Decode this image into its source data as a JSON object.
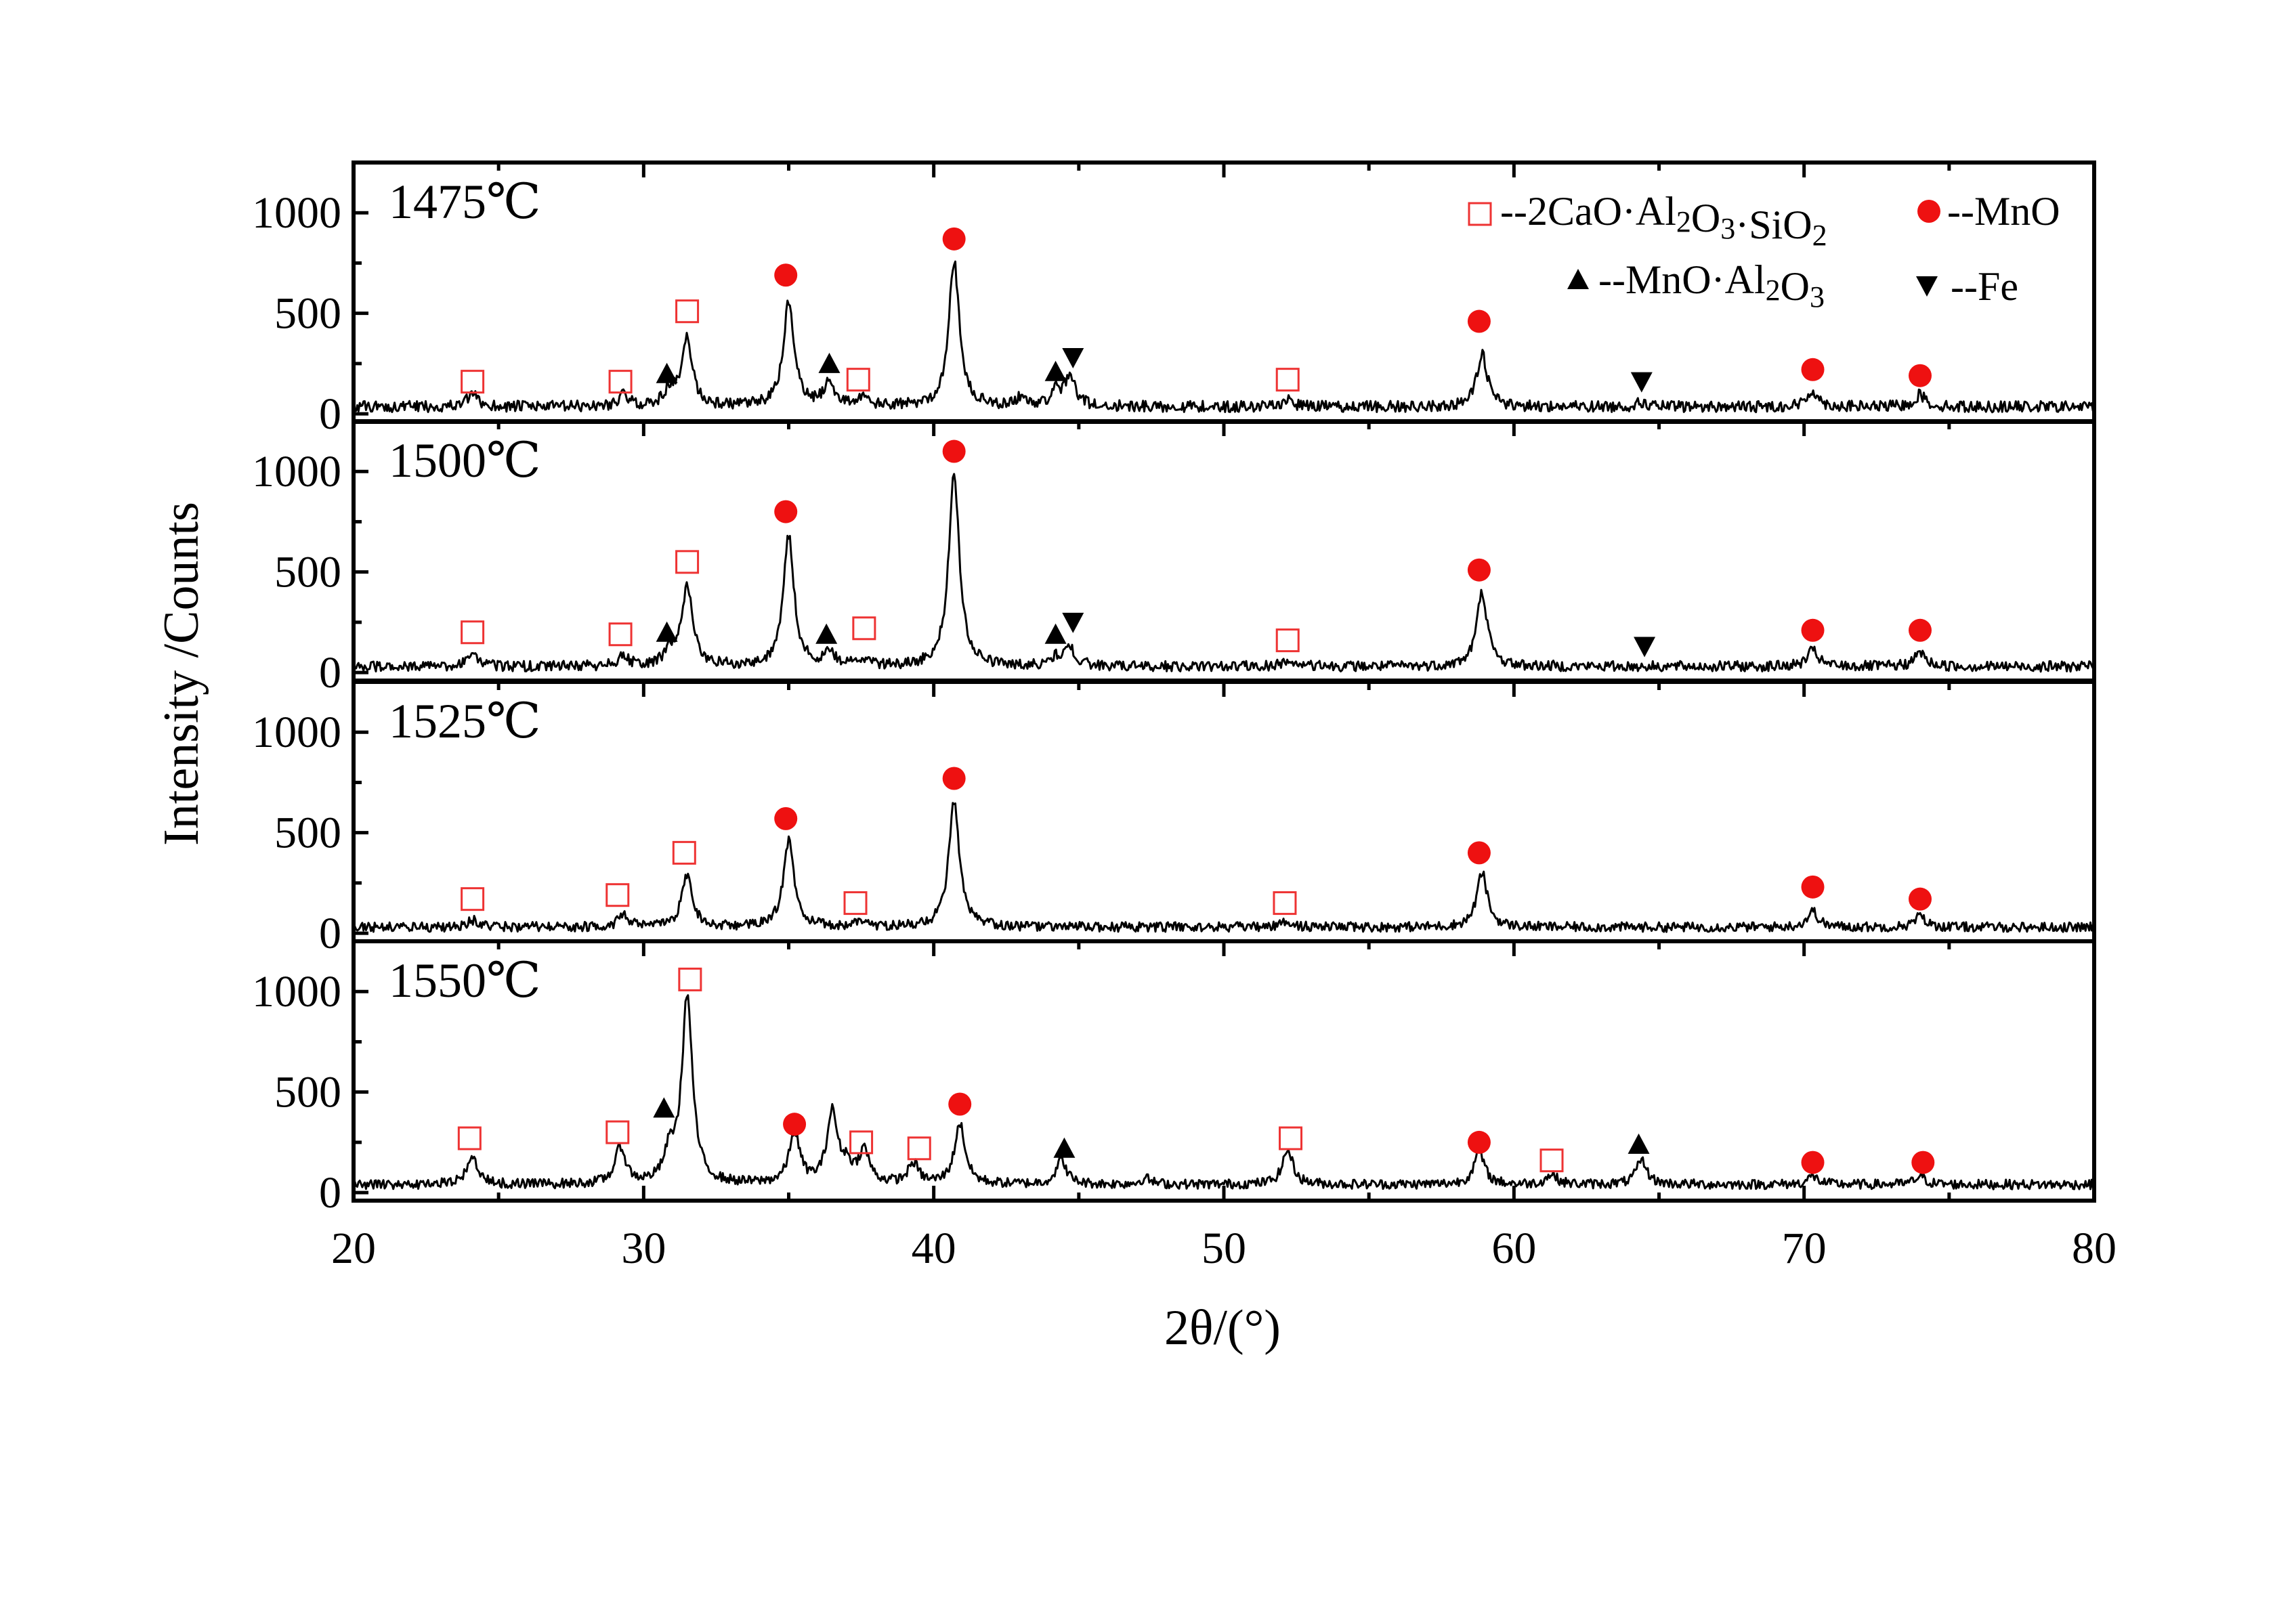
{
  "chart_data": {
    "type": "line",
    "xlabel": "2θ/(°)",
    "ylabel": "Intensity /Counts",
    "xlim": [
      20,
      80
    ],
    "ylim": [
      -40,
      1250
    ],
    "x_ticks": [
      "20",
      "30",
      "40",
      "50",
      "60",
      "70",
      "80"
    ],
    "y_ticks": [
      "0",
      "500",
      "1000"
    ],
    "legend_position": "top-right",
    "legend": [
      {
        "key": "C2AS",
        "marker": "open-square",
        "color": "#ee3333",
        "text": "--2CaO·Al2O3·SiO2"
      },
      {
        "key": "MnO",
        "marker": "filled-circle",
        "color": "#ee1111",
        "text": "--MnO"
      },
      {
        "key": "MnAl",
        "marker": "up-triangle",
        "color": "#000000",
        "text": "--MnO·Al2O3"
      },
      {
        "key": "Fe",
        "marker": "down-triangle",
        "color": "#000000",
        "text": "--Fe"
      }
    ],
    "series": [
      {
        "name": "1475℃",
        "baseline": 35,
        "noise": 28,
        "peaks": [
          [
            24.1,
            60
          ],
          [
            29.3,
            55
          ],
          [
            30.9,
            80
          ],
          [
            31.5,
            330
          ],
          [
            35.0,
            520
          ],
          [
            36.4,
            120
          ],
          [
            37.5,
            40
          ],
          [
            40.7,
            720
          ],
          [
            43.0,
            40
          ],
          [
            44.2,
            70
          ],
          [
            44.7,
            150
          ],
          [
            52.2,
            35
          ],
          [
            58.9,
            260
          ],
          [
            64.4,
            20
          ],
          [
            70.3,
            80
          ],
          [
            74.0,
            60
          ]
        ],
        "markers": [
          {
            "phase": "C2AS",
            "x": 24.1,
            "y": 160
          },
          {
            "phase": "C2AS",
            "x": 29.2,
            "y": 160
          },
          {
            "phase": "MnAl",
            "x": 30.8,
            "y": 200
          },
          {
            "phase": "C2AS",
            "x": 31.5,
            "y": 510
          },
          {
            "phase": "MnO",
            "x": 34.9,
            "y": 690
          },
          {
            "phase": "MnAl",
            "x": 36.4,
            "y": 250
          },
          {
            "phase": "C2AS",
            "x": 37.4,
            "y": 170
          },
          {
            "phase": "MnO",
            "x": 40.7,
            "y": 870
          },
          {
            "phase": "MnAl",
            "x": 44.2,
            "y": 210
          },
          {
            "phase": "Fe",
            "x": 44.8,
            "y": 280
          },
          {
            "phase": "C2AS",
            "x": 52.2,
            "y": 170
          },
          {
            "phase": "MnO",
            "x": 58.8,
            "y": 460
          },
          {
            "phase": "Fe",
            "x": 64.4,
            "y": 160
          },
          {
            "phase": "MnO",
            "x": 70.3,
            "y": 220
          },
          {
            "phase": "MnO",
            "x": 74.0,
            "y": 190
          }
        ]
      },
      {
        "name": "1500℃",
        "baseline": 30,
        "noise": 26,
        "peaks": [
          [
            24.1,
            55
          ],
          [
            29.3,
            50
          ],
          [
            30.9,
            70
          ],
          [
            31.5,
            400
          ],
          [
            35.0,
            650
          ],
          [
            36.4,
            60
          ],
          [
            37.5,
            35
          ],
          [
            40.7,
            960
          ],
          [
            44.2,
            40
          ],
          [
            44.7,
            90
          ],
          [
            52.2,
            30
          ],
          [
            58.9,
            370
          ],
          [
            70.3,
            80
          ],
          [
            74.0,
            70
          ]
        ],
        "markers": [
          {
            "phase": "C2AS",
            "x": 24.1,
            "y": 200
          },
          {
            "phase": "C2AS",
            "x": 29.2,
            "y": 190
          },
          {
            "phase": "MnAl",
            "x": 30.8,
            "y": 200
          },
          {
            "phase": "C2AS",
            "x": 31.5,
            "y": 550
          },
          {
            "phase": "MnO",
            "x": 34.9,
            "y": 800
          },
          {
            "phase": "MnAl",
            "x": 36.3,
            "y": 190
          },
          {
            "phase": "C2AS",
            "x": 37.6,
            "y": 220
          },
          {
            "phase": "MnO",
            "x": 40.7,
            "y": 1100
          },
          {
            "phase": "MnAl",
            "x": 44.2,
            "y": 190
          },
          {
            "phase": "Fe",
            "x": 44.8,
            "y": 250
          },
          {
            "phase": "C2AS",
            "x": 52.2,
            "y": 160
          },
          {
            "phase": "MnO",
            "x": 58.8,
            "y": 510
          },
          {
            "phase": "Fe",
            "x": 64.5,
            "y": 130
          },
          {
            "phase": "MnO",
            "x": 70.3,
            "y": 210
          },
          {
            "phase": "MnO",
            "x": 74.0,
            "y": 210
          }
        ]
      },
      {
        "name": "1525℃",
        "baseline": 30,
        "noise": 24,
        "peaks": [
          [
            24.1,
            35
          ],
          [
            29.3,
            55
          ],
          [
            31.5,
            260
          ],
          [
            35.0,
            430
          ],
          [
            37.5,
            30
          ],
          [
            40.7,
            620
          ],
          [
            52.2,
            30
          ],
          [
            58.9,
            270
          ],
          [
            70.3,
            80
          ],
          [
            74.0,
            55
          ]
        ],
        "markers": [
          {
            "phase": "C2AS",
            "x": 24.1,
            "y": 170
          },
          {
            "phase": "C2AS",
            "x": 29.1,
            "y": 190
          },
          {
            "phase": "C2AS",
            "x": 31.4,
            "y": 400
          },
          {
            "phase": "MnO",
            "x": 34.9,
            "y": 570
          },
          {
            "phase": "C2AS",
            "x": 37.3,
            "y": 150
          },
          {
            "phase": "MnO",
            "x": 40.7,
            "y": 770
          },
          {
            "phase": "C2AS",
            "x": 52.1,
            "y": 150
          },
          {
            "phase": "MnO",
            "x": 58.8,
            "y": 400
          },
          {
            "phase": "MnO",
            "x": 70.3,
            "y": 230
          },
          {
            "phase": "MnO",
            "x": 74.0,
            "y": 170
          }
        ]
      },
      {
        "name": "1550℃",
        "baseline": 40,
        "noise": 24,
        "peaks": [
          [
            24.1,
            140
          ],
          [
            29.2,
            180
          ],
          [
            30.9,
            140
          ],
          [
            31.5,
            930
          ],
          [
            35.2,
            250
          ],
          [
            36.5,
            350
          ],
          [
            37.0,
            80
          ],
          [
            37.6,
            160
          ],
          [
            39.3,
            100
          ],
          [
            40.9,
            300
          ],
          [
            44.4,
            120
          ],
          [
            47.3,
            30
          ],
          [
            52.2,
            170
          ],
          [
            58.8,
            160
          ],
          [
            61.3,
            50
          ],
          [
            64.4,
            120
          ],
          [
            70.3,
            40
          ],
          [
            74.0,
            40
          ]
        ],
        "markers": [
          {
            "phase": "C2AS",
            "x": 24.0,
            "y": 270
          },
          {
            "phase": "C2AS",
            "x": 29.1,
            "y": 300
          },
          {
            "phase": "MnAl",
            "x": 30.7,
            "y": 420
          },
          {
            "phase": "C2AS",
            "x": 31.6,
            "y": 1060
          },
          {
            "phase": "MnO",
            "x": 35.2,
            "y": 340
          },
          {
            "phase": "C2AS",
            "x": 37.5,
            "y": 250
          },
          {
            "phase": "C2AS",
            "x": 39.5,
            "y": 220
          },
          {
            "phase": "MnO",
            "x": 40.9,
            "y": 440
          },
          {
            "phase": "MnAl",
            "x": 44.5,
            "y": 220
          },
          {
            "phase": "C2AS",
            "x": 52.3,
            "y": 270
          },
          {
            "phase": "MnO",
            "x": 58.8,
            "y": 250
          },
          {
            "phase": "C2AS",
            "x": 61.3,
            "y": 160
          },
          {
            "phase": "MnAl",
            "x": 64.3,
            "y": 240
          },
          {
            "phase": "MnO",
            "x": 70.3,
            "y": 150
          },
          {
            "phase": "MnO",
            "x": 74.1,
            "y": 150
          }
        ]
      }
    ]
  }
}
